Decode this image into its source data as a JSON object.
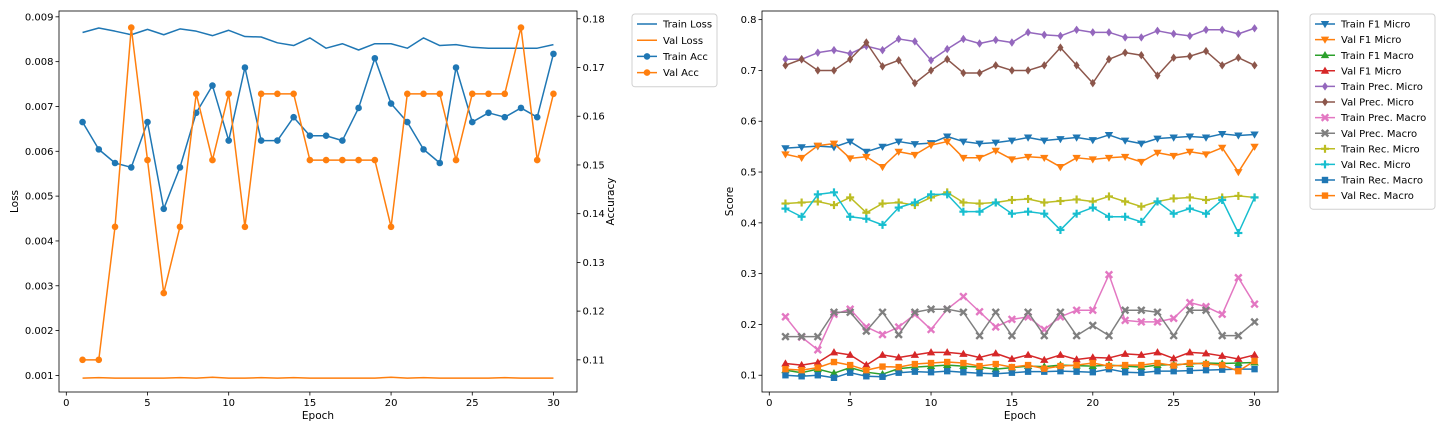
{
  "colors": {
    "blue": "#1f77b4",
    "orange": "#ff7f0e",
    "green": "#2ca02c",
    "red": "#d62728",
    "purple": "#9467bd",
    "brown": "#8c564b",
    "pink": "#e377c2",
    "gray": "#7f7f7f",
    "olive": "#bcbd22",
    "cyan": "#17becf"
  },
  "chart_data": [
    {
      "type": "line",
      "xlabel": "Epoch",
      "ylabel": "Loss",
      "ylabel_right": "Accuracy",
      "xlim": [
        -0.45,
        31.45
      ],
      "ylim": [
        0.00063,
        0.00913
      ],
      "ylim_right": [
        0.1034,
        0.1816
      ],
      "xticks": [
        0,
        5,
        10,
        15,
        20,
        25,
        30
      ],
      "yticks": [
        0.001,
        0.002,
        0.003,
        0.004,
        0.005,
        0.006,
        0.007,
        0.008,
        0.009
      ],
      "yticks_right": [
        0.11,
        0.12,
        0.13,
        0.14,
        0.15,
        0.16,
        0.17,
        0.18
      ],
      "grid": false,
      "legend_position": "outside-right-top",
      "x": [
        1,
        2,
        3,
        4,
        5,
        6,
        7,
        8,
        9,
        10,
        11,
        12,
        13,
        14,
        15,
        16,
        17,
        18,
        19,
        20,
        21,
        22,
        23,
        24,
        25,
        26,
        27,
        28,
        29,
        30
      ],
      "series": [
        {
          "name": "Train Loss",
          "axis": "left",
          "color": "blue",
          "marker": "none",
          "values": [
            0.00865,
            0.00875,
            0.00868,
            0.0086,
            0.00872,
            0.0086,
            0.00873,
            0.00868,
            0.00858,
            0.0087,
            0.00856,
            0.00855,
            0.00842,
            0.00836,
            0.00853,
            0.0083,
            0.0084,
            0.00826,
            0.0084,
            0.0084,
            0.0083,
            0.00853,
            0.00836,
            0.00838,
            0.00832,
            0.0083,
            0.0083,
            0.0083,
            0.0083,
            0.00838
          ]
        },
        {
          "name": "Val Loss",
          "axis": "left",
          "color": "orange",
          "marker": "none",
          "values": [
            0.00094,
            0.00095,
            0.00094,
            0.00094,
            0.00094,
            0.00094,
            0.00095,
            0.00094,
            0.00096,
            0.00094,
            0.00094,
            0.00095,
            0.00094,
            0.00095,
            0.00094,
            0.00094,
            0.00094,
            0.00094,
            0.00094,
            0.00096,
            0.00094,
            0.00095,
            0.00094,
            0.00094,
            0.00094,
            0.00094,
            0.00095,
            0.00094,
            0.00094,
            0.00094
          ]
        },
        {
          "name": "Train Acc",
          "axis": "right",
          "color": "blue",
          "marker": "circle",
          "values": [
            0.1588,
            0.1532,
            0.1504,
            0.1495,
            0.1588,
            0.141,
            0.1495,
            0.1607,
            0.1663,
            0.155,
            0.17,
            0.155,
            0.155,
            0.1598,
            0.156,
            0.156,
            0.155,
            0.1617,
            0.1719,
            0.1626,
            0.1588,
            0.1532,
            0.1504,
            0.17,
            0.1588,
            0.1607,
            0.1598,
            0.1617,
            0.1598,
            0.1728
          ]
        },
        {
          "name": "Val Acc",
          "axis": "right",
          "color": "orange",
          "marker": "circle",
          "values": [
            0.11,
            0.11,
            0.1373,
            0.1782,
            0.151,
            0.1237,
            0.1373,
            0.1646,
            0.151,
            0.1646,
            0.1373,
            0.1646,
            0.1646,
            0.1646,
            0.151,
            0.151,
            0.151,
            0.151,
            0.151,
            0.1373,
            0.1646,
            0.1646,
            0.1646,
            0.151,
            0.1646,
            0.1646,
            0.1646,
            0.1782,
            0.151,
            0.1646
          ]
        }
      ]
    },
    {
      "type": "line",
      "xlabel": "Epoch",
      "ylabel": "Score",
      "xlim": [
        -0.45,
        31.45
      ],
      "ylim": [
        0.067,
        0.817
      ],
      "xticks": [
        0,
        5,
        10,
        15,
        20,
        25,
        30
      ],
      "yticks": [
        0.1,
        0.2,
        0.3,
        0.4,
        0.5,
        0.6,
        0.7,
        0.8
      ],
      "grid": false,
      "legend_position": "outside-right-top",
      "x": [
        1,
        2,
        3,
        4,
        5,
        6,
        7,
        8,
        9,
        10,
        11,
        12,
        13,
        14,
        15,
        16,
        17,
        18,
        19,
        20,
        21,
        22,
        23,
        24,
        25,
        26,
        27,
        28,
        29,
        30
      ],
      "series": [
        {
          "name": "Train F1 Micro",
          "color": "blue",
          "marker": "tri-down",
          "values": [
            0.547,
            0.549,
            0.551,
            0.549,
            0.56,
            0.54,
            0.55,
            0.56,
            0.555,
            0.557,
            0.57,
            0.56,
            0.556,
            0.558,
            0.562,
            0.568,
            0.562,
            0.565,
            0.568,
            0.563,
            0.573,
            0.562,
            0.556,
            0.566,
            0.568,
            0.57,
            0.568,
            0.575,
            0.572,
            0.574
          ]
        },
        {
          "name": "Val F1 Micro",
          "color": "orange",
          "marker": "tri-down",
          "values": [
            0.535,
            0.528,
            0.552,
            0.556,
            0.527,
            0.53,
            0.51,
            0.54,
            0.534,
            0.553,
            0.56,
            0.528,
            0.528,
            0.542,
            0.525,
            0.53,
            0.528,
            0.51,
            0.528,
            0.525,
            0.528,
            0.53,
            0.52,
            0.538,
            0.532,
            0.54,
            0.535,
            0.548,
            0.5,
            0.55
          ]
        },
        {
          "name": "Train F1 Macro",
          "color": "green",
          "marker": "tri-up",
          "values": [
            0.11,
            0.105,
            0.112,
            0.104,
            0.115,
            0.106,
            0.102,
            0.113,
            0.116,
            0.118,
            0.12,
            0.118,
            0.116,
            0.112,
            0.115,
            0.118,
            0.117,
            0.12,
            0.119,
            0.118,
            0.12,
            0.118,
            0.116,
            0.12,
            0.121,
            0.122,
            0.124,
            0.123,
            0.124,
            0.125
          ]
        },
        {
          "name": "Val F1 Micro",
          "color": "red",
          "marker": "tri-up",
          "values": [
            0.123,
            0.12,
            0.125,
            0.145,
            0.14,
            0.12,
            0.14,
            0.135,
            0.14,
            0.145,
            0.145,
            0.142,
            0.135,
            0.143,
            0.132,
            0.14,
            0.13,
            0.14,
            0.131,
            0.135,
            0.134,
            0.142,
            0.14,
            0.145,
            0.133,
            0.145,
            0.143,
            0.138,
            0.132,
            0.14
          ]
        },
        {
          "name": "Train Prec. Micro",
          "color": "purple",
          "marker": "diamond",
          "values": [
            0.722,
            0.722,
            0.735,
            0.74,
            0.733,
            0.748,
            0.74,
            0.762,
            0.757,
            0.72,
            0.742,
            0.762,
            0.753,
            0.76,
            0.755,
            0.775,
            0.77,
            0.768,
            0.78,
            0.775,
            0.775,
            0.765,
            0.765,
            0.778,
            0.772,
            0.768,
            0.78,
            0.78,
            0.772,
            0.783
          ]
        },
        {
          "name": "Val Prec. Micro",
          "color": "brown",
          "marker": "diamond",
          "values": [
            0.71,
            0.722,
            0.7,
            0.7,
            0.722,
            0.755,
            0.708,
            0.72,
            0.675,
            0.7,
            0.722,
            0.695,
            0.695,
            0.71,
            0.7,
            0.7,
            0.71,
            0.745,
            0.71,
            0.675,
            0.722,
            0.735,
            0.73,
            0.69,
            0.725,
            0.728,
            0.738,
            0.71,
            0.725,
            0.71
          ]
        },
        {
          "name": "Train Prec. Macro",
          "color": "pink",
          "marker": "x",
          "values": [
            0.215,
            0.175,
            0.15,
            0.22,
            0.23,
            0.195,
            0.18,
            0.195,
            0.22,
            0.19,
            0.23,
            0.255,
            0.225,
            0.195,
            0.21,
            0.215,
            0.19,
            0.215,
            0.228,
            0.228,
            0.298,
            0.208,
            0.205,
            0.205,
            0.212,
            0.243,
            0.235,
            0.22,
            0.292,
            0.24
          ]
        },
        {
          "name": "Val Prec. Macro",
          "color": "gray",
          "marker": "x",
          "values": [
            0.176,
            0.176,
            0.176,
            0.224,
            0.224,
            0.187,
            0.224,
            0.18,
            0.224,
            0.23,
            0.23,
            0.224,
            0.178,
            0.224,
            0.178,
            0.224,
            0.178,
            0.224,
            0.178,
            0.198,
            0.178,
            0.228,
            0.228,
            0.224,
            0.178,
            0.228,
            0.228,
            0.178,
            0.178,
            0.205
          ]
        },
        {
          "name": "Train Rec. Micro",
          "color": "olive",
          "marker": "plus",
          "values": [
            0.438,
            0.44,
            0.442,
            0.435,
            0.45,
            0.42,
            0.438,
            0.44,
            0.435,
            0.45,
            0.46,
            0.44,
            0.438,
            0.44,
            0.445,
            0.447,
            0.44,
            0.443,
            0.446,
            0.442,
            0.452,
            0.442,
            0.432,
            0.442,
            0.448,
            0.45,
            0.445,
            0.45,
            0.453,
            0.45
          ]
        },
        {
          "name": "Val Rec. Micro",
          "color": "cyan",
          "marker": "plus",
          "values": [
            0.428,
            0.412,
            0.456,
            0.46,
            0.412,
            0.408,
            0.396,
            0.43,
            0.44,
            0.456,
            0.456,
            0.422,
            0.422,
            0.44,
            0.418,
            0.422,
            0.418,
            0.386,
            0.418,
            0.43,
            0.412,
            0.412,
            0.402,
            0.442,
            0.418,
            0.428,
            0.418,
            0.445,
            0.38,
            0.45
          ]
        },
        {
          "name": "Train Rec. Macro",
          "color": "blue",
          "marker": "square",
          "values": [
            0.1,
            0.098,
            0.1,
            0.095,
            0.105,
            0.098,
            0.097,
            0.105,
            0.107,
            0.106,
            0.108,
            0.106,
            0.104,
            0.103,
            0.105,
            0.107,
            0.107,
            0.108,
            0.107,
            0.106,
            0.112,
            0.106,
            0.105,
            0.108,
            0.108,
            0.109,
            0.11,
            0.111,
            0.112,
            0.112
          ]
        },
        {
          "name": "Val Rec. Macro",
          "color": "orange",
          "marker": "square",
          "values": [
            0.112,
            0.11,
            0.115,
            0.126,
            0.12,
            0.11,
            0.117,
            0.116,
            0.122,
            0.124,
            0.126,
            0.124,
            0.118,
            0.122,
            0.116,
            0.12,
            0.113,
            0.118,
            0.12,
            0.124,
            0.118,
            0.12,
            0.12,
            0.124,
            0.119,
            0.124,
            0.122,
            0.12,
            0.108,
            0.128
          ]
        }
      ]
    }
  ]
}
